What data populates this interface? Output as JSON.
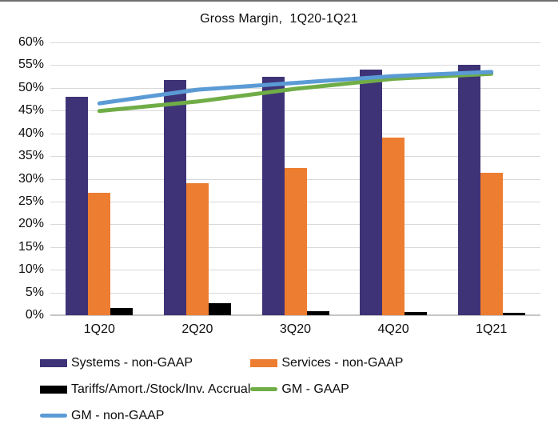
{
  "chart_data": {
    "type": "bar",
    "title": "Gross Margin,  1Q20-1Q21",
    "categories": [
      "1Q20",
      "2Q20",
      "3Q20",
      "4Q20",
      "1Q21"
    ],
    "series": [
      {
        "name": "Systems - non-GAAP",
        "kind": "bar",
        "color": "#3f3377",
        "values": [
          48.0,
          51.8,
          52.5,
          54.0,
          55.0
        ]
      },
      {
        "name": "Services - non-GAAP",
        "kind": "bar",
        "color": "#ed7d31",
        "values": [
          27.0,
          29.0,
          32.4,
          39.0,
          31.3
        ]
      },
      {
        "name": "Tariffs/Amort./Stock/Inv. Accrual",
        "kind": "bar",
        "color": "#000000",
        "values": [
          1.6,
          2.7,
          0.9,
          0.7,
          0.5
        ]
      },
      {
        "name": "GM - GAAP",
        "kind": "line",
        "color": "#70ad47",
        "values": [
          44.9,
          47.0,
          49.8,
          52.0,
          53.1
        ]
      },
      {
        "name": "GM - non-GAAP",
        "kind": "line",
        "color": "#5b9bd5",
        "values": [
          46.6,
          49.6,
          51.1,
          52.6,
          53.5
        ]
      }
    ],
    "xlabel": "",
    "ylabel": "",
    "ylim": [
      0,
      60
    ],
    "ytick_step": 5,
    "ytick_labels": [
      "0%",
      "5%",
      "10%",
      "15%",
      "20%",
      "25%",
      "30%",
      "35%",
      "40%",
      "45%",
      "50%",
      "55%",
      "60%"
    ],
    "grid": true,
    "legend_position": "bottom",
    "legend": [
      {
        "label": "Systems - non-GAAP",
        "swatch": "bar",
        "color": "#3f3377"
      },
      {
        "label": "Services - non-GAAP",
        "swatch": "bar",
        "color": "#ed7d31"
      },
      {
        "label": "Tariffs/Amort./Stock/Inv. Accrual",
        "swatch": "bar",
        "color": "#000000"
      },
      {
        "label": "GM - GAAP",
        "swatch": "line",
        "color": "#70ad47"
      },
      {
        "label": "GM - non-GAAP",
        "swatch": "line",
        "color": "#5b9bd5"
      }
    ]
  },
  "style": {
    "gridline_color": "#d9d9d9",
    "axis_line_color": "#c6c6c6",
    "text_color": "#0d0d0d",
    "background": "#ffffff"
  }
}
